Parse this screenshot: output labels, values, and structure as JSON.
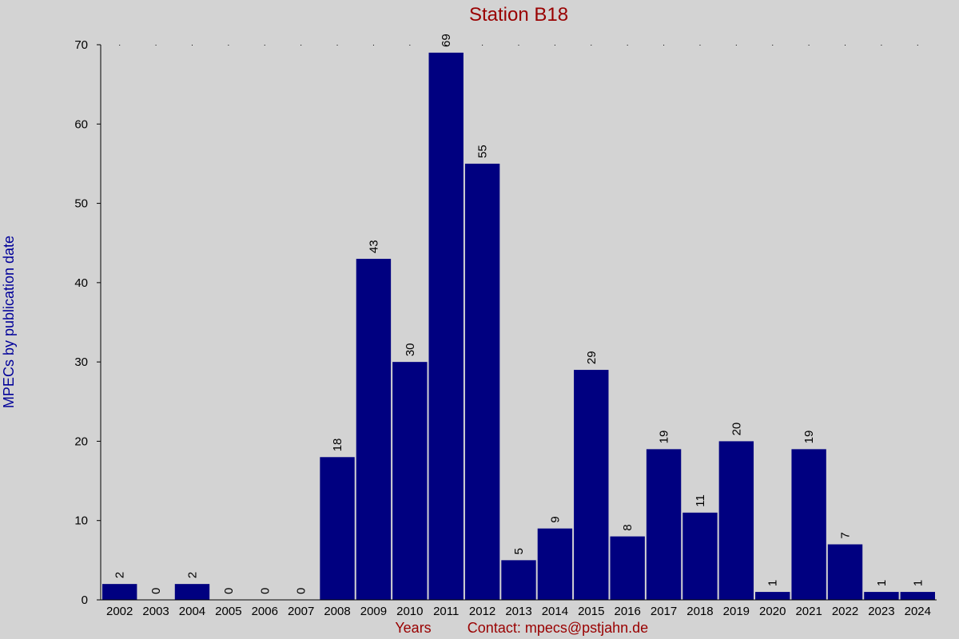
{
  "chart_data": {
    "type": "bar",
    "title": "Station B18",
    "ylabel": "MPECs by publication date",
    "xlabel": "Years",
    "contact": "Contact: mpecs@pstjahn.de",
    "categories": [
      "2002",
      "2003",
      "2004",
      "2005",
      "2006",
      "2007",
      "2008",
      "2009",
      "2010",
      "2011",
      "2012",
      "2013",
      "2014",
      "2015",
      "2016",
      "2017",
      "2018",
      "2019",
      "2020",
      "2021",
      "2022",
      "2023",
      "2024"
    ],
    "values": [
      2,
      0,
      2,
      0,
      0,
      0,
      18,
      43,
      30,
      69,
      55,
      5,
      9,
      29,
      8,
      19,
      11,
      20,
      1,
      19,
      7,
      1,
      1
    ],
    "ylim": [
      0,
      70
    ],
    "yticks": [
      0,
      10,
      20,
      30,
      40,
      50,
      60,
      70
    ],
    "colors": {
      "bar": "#000080",
      "title": "#990000",
      "ylabel": "#000099",
      "background": "#d3d3d3"
    }
  }
}
